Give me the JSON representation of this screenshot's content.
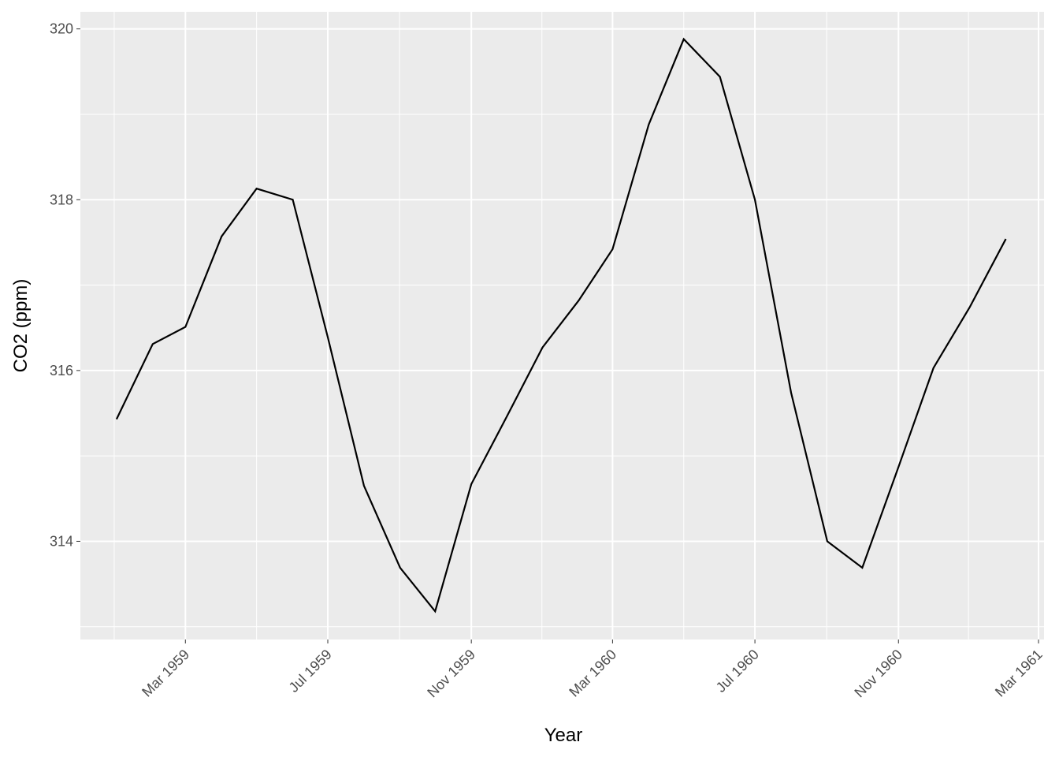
{
  "chart_data": {
    "type": "line",
    "x_label": "Year",
    "y_label": "CO2 (ppm)",
    "x": [
      "1959-01",
      "1959-02",
      "1959-03",
      "1959-04",
      "1959-05",
      "1959-06",
      "1959-07",
      "1959-08",
      "1959-09",
      "1959-10",
      "1959-11",
      "1959-12",
      "1960-01",
      "1960-02",
      "1960-03",
      "1960-04",
      "1960-05",
      "1960-06",
      "1960-07",
      "1960-08",
      "1960-09",
      "1960-10",
      "1960-11",
      "1960-12",
      "1961-01",
      "1961-02"
    ],
    "series": [
      {
        "name": "CO2",
        "color": "#000000",
        "values": [
          315.43,
          316.31,
          316.51,
          317.57,
          318.13,
          318.0,
          316.39,
          314.65,
          313.69,
          313.18,
          314.67,
          315.45,
          316.27,
          316.82,
          317.42,
          318.88,
          319.88,
          319.44,
          318.0,
          315.74,
          314.0,
          313.69,
          314.87,
          316.03,
          316.74,
          317.54
        ]
      }
    ],
    "xlim": [
      "1958-12",
      "1961-03"
    ],
    "xticks": [
      {
        "value": "1959-03",
        "label": "Mar 1959"
      },
      {
        "value": "1959-07",
        "label": "Jul 1959"
      },
      {
        "value": "1959-11",
        "label": "Nov 1959"
      },
      {
        "value": "1960-03",
        "label": "Mar 1960"
      },
      {
        "value": "1960-07",
        "label": "Jul 1960"
      },
      {
        "value": "1960-11",
        "label": "Nov 1960"
      },
      {
        "value": "1961-03",
        "label": "Mar 1961"
      }
    ],
    "ylim": [
      312.85,
      320.2
    ],
    "yticks": [
      314,
      316,
      318,
      320
    ],
    "grid": true
  }
}
